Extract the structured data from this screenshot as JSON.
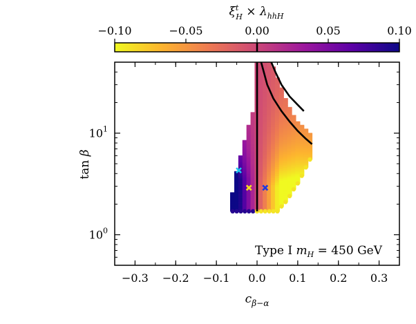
{
  "chart_data": {
    "type": "scatter",
    "title": "",
    "colorbar": {
      "label": "ξ^t_H × λ_hhH",
      "range": [
        -0.1,
        0.1
      ],
      "ticks": [
        {
          "value": -0.1,
          "label": "−0.10"
        },
        {
          "value": -0.05,
          "label": "−0.05"
        },
        {
          "value": 0.0,
          "label": "0.00"
        },
        {
          "value": 0.05,
          "label": "0.05"
        },
        {
          "value": 0.1,
          "label": "0.10"
        }
      ],
      "colormap": [
        "#f0f921",
        "#fdb42f",
        "#ed7953",
        "#cc4778",
        "#9c179e",
        "#5c01a6",
        "#0d0887"
      ]
    },
    "xaxis": {
      "label": "c_β−α",
      "range": [
        -0.35,
        0.35
      ],
      "ticks": [
        {
          "value": -0.3,
          "label": "−0.3"
        },
        {
          "value": -0.2,
          "label": "−0.2"
        },
        {
          "value": -0.1,
          "label": "−0.1"
        },
        {
          "value": 0.0,
          "label": "0.0"
        },
        {
          "value": 0.1,
          "label": "0.1"
        },
        {
          "value": 0.2,
          "label": "0.2"
        },
        {
          "value": 0.3,
          "label": "0.3"
        }
      ]
    },
    "yaxis": {
      "label": "tan β",
      "scale": "log",
      "range": [
        0.5,
        50
      ],
      "ticks": [
        {
          "value": 1,
          "label_base": "10",
          "label_exp": "0"
        },
        {
          "value": 10,
          "label_base": "10",
          "label_exp": "1"
        }
      ]
    },
    "annotation": "Type I m_H = 450 GeV",
    "region_columns": [
      {
        "x": -0.06,
        "y": [
          1.7,
          2.6
        ]
      },
      {
        "x": -0.05,
        "y": [
          1.7,
          4.2
        ]
      },
      {
        "x": -0.04,
        "y": [
          1.7,
          6.0
        ]
      },
      {
        "x": -0.03,
        "y": [
          1.7,
          8.5
        ]
      },
      {
        "x": -0.02,
        "y": [
          1.7,
          12.0
        ]
      },
      {
        "x": -0.01,
        "y": [
          1.7,
          16.0
        ]
      },
      {
        "x": 0.0,
        "y": [
          1.7,
          50
        ]
      },
      {
        "x": 0.01,
        "y": [
          1.7,
          50
        ]
      },
      {
        "x": 0.02,
        "y": [
          1.7,
          50
        ]
      },
      {
        "x": 0.03,
        "y": [
          1.7,
          50
        ]
      },
      {
        "x": 0.04,
        "y": [
          1.7,
          45
        ]
      },
      {
        "x": 0.05,
        "y": [
          1.7,
          35
        ]
      },
      {
        "x": 0.06,
        "y": [
          1.9,
          28
        ]
      },
      {
        "x": 0.07,
        "y": [
          2.1,
          22
        ]
      },
      {
        "x": 0.08,
        "y": [
          2.4,
          18
        ]
      },
      {
        "x": 0.09,
        "y": [
          2.8,
          15
        ]
      },
      {
        "x": 0.1,
        "y": [
          3.2,
          13
        ]
      },
      {
        "x": 0.11,
        "y": [
          3.8,
          12
        ]
      },
      {
        "x": 0.12,
        "y": [
          4.6,
          11
        ]
      },
      {
        "x": 0.13,
        "y": [
          5.5,
          10
        ]
      }
    ],
    "markers": [
      {
        "x": -0.045,
        "y": 4.3,
        "color": "#1ec8f0",
        "symbol": "x"
      },
      {
        "x": -0.02,
        "y": 2.9,
        "color": "#f5e11e",
        "symbol": "x"
      },
      {
        "x": 0.02,
        "y": 2.9,
        "color": "#2038e0",
        "symbol": "x"
      }
    ],
    "contour_lines": [
      {
        "name": "",
        "points": [
          [
            0.0,
            1.7
          ],
          [
            0.0,
            50
          ]
        ]
      },
      {
        "name": "",
        "points": [
          [
            0.01,
            50
          ],
          [
            0.025,
            30
          ],
          [
            0.04,
            22
          ],
          [
            0.06,
            16.5
          ],
          [
            0.08,
            13
          ],
          [
            0.1,
            10.5
          ],
          [
            0.12,
            8.8
          ],
          [
            0.135,
            7.8
          ]
        ]
      },
      {
        "name": "",
        "points": [
          [
            0.035,
            50
          ],
          [
            0.045,
            40
          ],
          [
            0.06,
            30
          ],
          [
            0.08,
            23
          ],
          [
            0.1,
            19
          ],
          [
            0.115,
            16.5
          ]
        ]
      }
    ]
  }
}
